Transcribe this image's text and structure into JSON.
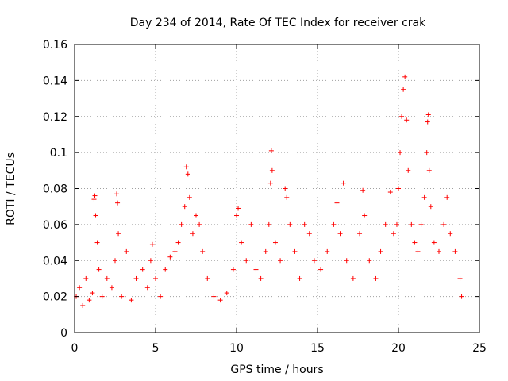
{
  "chart_data": {
    "type": "scatter",
    "title": "Day 234 of 2014, Rate Of TEC Index for receiver crak",
    "xlabel": "GPS time / hours",
    "ylabel": "ROTI / TECUs",
    "xlim": [
      0,
      25
    ],
    "ylim": [
      0,
      0.16
    ],
    "xticks": [
      0,
      5,
      10,
      15,
      20,
      25
    ],
    "yticks": [
      0,
      0.02,
      0.04,
      0.06,
      0.08,
      0.1,
      0.12,
      0.14,
      0.16
    ],
    "xtick_labels": [
      "0",
      "5",
      "10",
      "15",
      "20",
      "25"
    ],
    "ytick_labels": [
      "0",
      "0.02",
      "0.04",
      "0.06",
      "0.08",
      "0.1",
      "0.12",
      "0.14",
      "0.16"
    ],
    "grid": true,
    "marker": "+",
    "marker_color": "#ff0000",
    "series": [
      {
        "name": "ROTI",
        "notes": "dense point cloud; values listed are representative samples read from the plot",
        "points": [
          [
            0.1,
            0.02
          ],
          [
            0.3,
            0.025
          ],
          [
            0.5,
            0.015
          ],
          [
            0.7,
            0.03
          ],
          [
            0.9,
            0.018
          ],
          [
            1.1,
            0.022
          ],
          [
            1.2,
            0.074
          ],
          [
            1.25,
            0.076
          ],
          [
            1.3,
            0.065
          ],
          [
            1.4,
            0.05
          ],
          [
            1.5,
            0.035
          ],
          [
            1.7,
            0.02
          ],
          [
            2.0,
            0.03
          ],
          [
            2.3,
            0.025
          ],
          [
            2.5,
            0.04
          ],
          [
            2.6,
            0.077
          ],
          [
            2.65,
            0.072
          ],
          [
            2.7,
            0.055
          ],
          [
            2.9,
            0.02
          ],
          [
            3.2,
            0.045
          ],
          [
            3.5,
            0.018
          ],
          [
            3.8,
            0.03
          ],
          [
            4.2,
            0.035
          ],
          [
            4.5,
            0.025
          ],
          [
            4.7,
            0.04
          ],
          [
            4.8,
            0.049
          ],
          [
            5.0,
            0.03
          ],
          [
            5.3,
            0.02
          ],
          [
            5.6,
            0.035
          ],
          [
            5.9,
            0.042
          ],
          [
            6.2,
            0.045
          ],
          [
            6.4,
            0.05
          ],
          [
            6.6,
            0.06
          ],
          [
            6.8,
            0.07
          ],
          [
            6.9,
            0.092
          ],
          [
            7.0,
            0.088
          ],
          [
            7.1,
            0.075
          ],
          [
            7.3,
            0.055
          ],
          [
            7.5,
            0.065
          ],
          [
            7.7,
            0.06
          ],
          [
            7.9,
            0.045
          ],
          [
            8.2,
            0.03
          ],
          [
            8.6,
            0.02
          ],
          [
            9.0,
            0.018
          ],
          [
            9.4,
            0.022
          ],
          [
            9.8,
            0.035
          ],
          [
            10.0,
            0.065
          ],
          [
            10.1,
            0.069
          ],
          [
            10.3,
            0.05
          ],
          [
            10.6,
            0.04
          ],
          [
            10.9,
            0.06
          ],
          [
            11.2,
            0.035
          ],
          [
            11.5,
            0.03
          ],
          [
            11.8,
            0.045
          ],
          [
            12.0,
            0.06
          ],
          [
            12.1,
            0.083
          ],
          [
            12.15,
            0.101
          ],
          [
            12.2,
            0.09
          ],
          [
            12.4,
            0.05
          ],
          [
            12.7,
            0.04
          ],
          [
            13.0,
            0.08
          ],
          [
            13.1,
            0.075
          ],
          [
            13.3,
            0.06
          ],
          [
            13.6,
            0.045
          ],
          [
            13.9,
            0.03
          ],
          [
            14.2,
            0.06
          ],
          [
            14.5,
            0.055
          ],
          [
            14.8,
            0.04
          ],
          [
            15.2,
            0.035
          ],
          [
            15.6,
            0.045
          ],
          [
            16.0,
            0.06
          ],
          [
            16.2,
            0.072
          ],
          [
            16.4,
            0.055
          ],
          [
            16.6,
            0.083
          ],
          [
            16.8,
            0.04
          ],
          [
            17.2,
            0.03
          ],
          [
            17.6,
            0.055
          ],
          [
            17.8,
            0.079
          ],
          [
            17.9,
            0.065
          ],
          [
            18.2,
            0.04
          ],
          [
            18.6,
            0.03
          ],
          [
            18.9,
            0.045
          ],
          [
            19.2,
            0.06
          ],
          [
            19.5,
            0.078
          ],
          [
            19.7,
            0.055
          ],
          [
            19.9,
            0.06
          ],
          [
            20.0,
            0.08
          ],
          [
            20.1,
            0.1
          ],
          [
            20.2,
            0.12
          ],
          [
            20.3,
            0.135
          ],
          [
            20.4,
            0.142
          ],
          [
            20.5,
            0.118
          ],
          [
            20.6,
            0.09
          ],
          [
            20.8,
            0.06
          ],
          [
            21.0,
            0.05
          ],
          [
            21.2,
            0.045
          ],
          [
            21.4,
            0.06
          ],
          [
            21.6,
            0.075
          ],
          [
            21.75,
            0.1
          ],
          [
            21.8,
            0.117
          ],
          [
            21.85,
            0.121
          ],
          [
            21.9,
            0.09
          ],
          [
            22.0,
            0.07
          ],
          [
            22.2,
            0.05
          ],
          [
            22.5,
            0.045
          ],
          [
            22.8,
            0.06
          ],
          [
            23.0,
            0.075
          ],
          [
            23.2,
            0.055
          ],
          [
            23.5,
            0.045
          ],
          [
            23.8,
            0.03
          ],
          [
            23.9,
            0.02
          ]
        ]
      }
    ]
  }
}
